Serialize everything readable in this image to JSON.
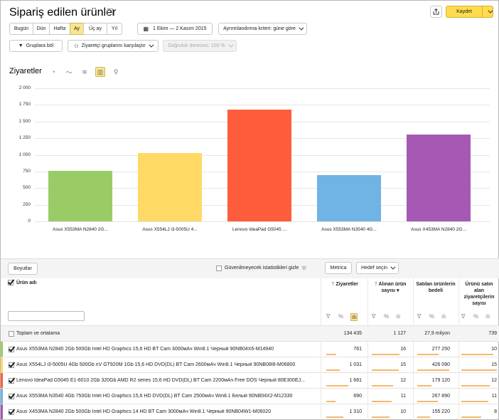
{
  "header": {
    "title": "Sipariş edilen ürünler",
    "save_label": "Kaydet"
  },
  "periods": [
    "Bugün",
    "Dün",
    "Hafta",
    "Ay",
    "Üç ay",
    "Yıl"
  ],
  "active_period": "Ay",
  "date_range": "1 Ekim — 2 Kasım 2015",
  "detail": "Ayrıntılandırma kriteri: güne göre",
  "group": "Gruplara böl",
  "compare": "Ziyaretçi gruplarını karşılaştır",
  "accuracy": "Doğruluk derecesi: 100 %",
  "chart_title": "Ziyaretler",
  "chart_data": {
    "type": "bar",
    "categories": [
      "Asus X553MA N2840 2G...",
      "Asus X554LJ i3-5005U 4...",
      "Lenovo IdeaPad G5045 ...",
      "Asus X553MA N3540 4G...",
      "Asus X453MA N2840 2G..."
    ],
    "values": [
      761,
      1031,
      1681,
      690,
      1310
    ],
    "colors": [
      "#99cc66",
      "#ffd966",
      "#ff5c3b",
      "#70b3e5",
      "#a658b5"
    ],
    "ylim": [
      0,
      2000
    ],
    "yticks": [
      "2 000",
      "1 750",
      "1 500",
      "1 250",
      "1 000",
      "750",
      "500",
      "250",
      "0"
    ]
  },
  "table": {
    "dimensions_label": "Boyutlar",
    "hide_label": "Güvenilmeyecek istatistikleri gizle",
    "metrica_label": "Metrica",
    "goal_label": "Hedef seçin",
    "col_name": "Ürün adı",
    "col1": "Ziyaretler",
    "col2": "Alınan ürün sayısı",
    "col3": "Satılan ürünlerin bedeli",
    "col4": "Ürünü satın alan ziyaretçilerin sayısı",
    "total_label": "Toplam ve ortalama",
    "totals": [
      "134 435",
      "1 127",
      "27,9 milyon",
      "739"
    ],
    "rows": [
      {
        "name": "Asus X553MA N2840 2Gb 500Gb Intel HD Graphics 15,6 HD BT Cam 3000мАч Win8.1 Черный 90NB04X6-M14940",
        "v": [
          "761",
          "16",
          "277 250",
          "10"
        ]
      },
      {
        "name": "Asus X554LJ i3-5005U 4Gb 500Gb nV GT920M 1Gb 15,6 HD DVD(DL) BT Cam 2600мАч Win8.1 Черный 90NB08I8-M06800",
        "v": [
          "1 031",
          "15",
          "426 090",
          "15"
        ]
      },
      {
        "name": "Lenovo IdeaPad G5045 E1-6010 2Gb 320Gb AMD R2 series 15,6 HD DVD(DL) BT Cam 2200мАч Free DOS Черный 80E300EJ...",
        "v": [
          "1 681",
          "12",
          "179 120",
          "12"
        ]
      },
      {
        "name": "Asus X553MA N3540 4Gb 750Gb Intel HD Graphics 15,6 HD DVD(DL) BT Cam 2500мАч Win8.1 Белый 90NB04X2-M12330",
        "v": [
          "690",
          "11",
          "267 890",
          "11"
        ]
      },
      {
        "name": "Asus X453MA N2840 2Gb 500Gb Intel HD Graphics 14 HD BT Cam 3000мАч Win8.1 Черный 90NB04W1-M06020",
        "v": [
          "1 310",
          "10",
          "155 220",
          "8"
        ]
      }
    ],
    "row_bars": [
      [
        0.28,
        0.78,
        0.6,
        0.9
      ],
      [
        0.38,
        0.75,
        0.9,
        1.0
      ],
      [
        0.62,
        0.6,
        0.4,
        0.8
      ],
      [
        0.25,
        0.55,
        0.58,
        0.75
      ],
      [
        0.48,
        0.5,
        0.35,
        0.55
      ]
    ]
  }
}
